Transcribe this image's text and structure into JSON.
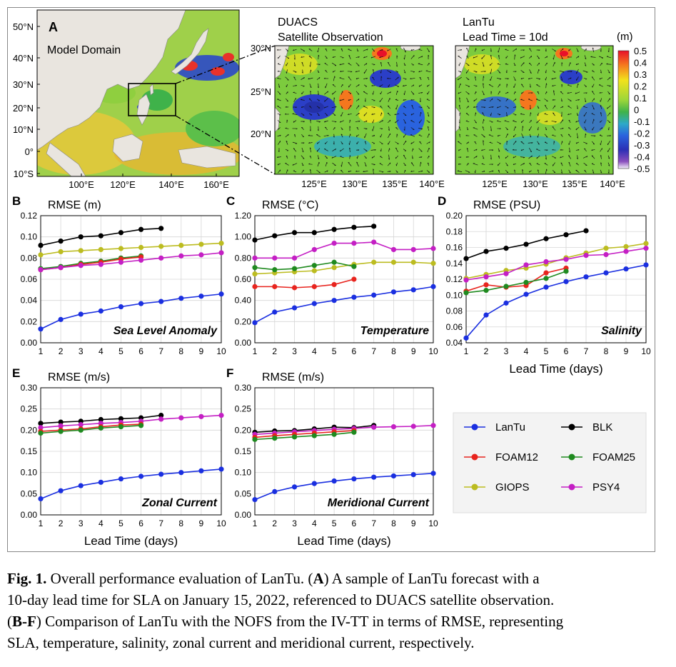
{
  "panel_a": {
    "letter": "A",
    "domain_label": "Model Domain",
    "lat_ticks": [
      "50°N",
      "40°N",
      "30°N",
      "20°N",
      "10°N",
      "0°",
      "10°S"
    ],
    "lon_ticks": [
      "100°E",
      "120°E",
      "140°E",
      "160°E"
    ],
    "duacs_title_1": "DUACS",
    "duacs_title_2": "Satellite Observation",
    "lantu_title_1": "LanTu",
    "lantu_title_2": "Lead Time = 10d",
    "zoom_lat_ticks": [
      "30°N",
      "25°N",
      "20°N"
    ],
    "zoom_lon_ticks": [
      "125°E",
      "130°E",
      "135°E",
      "140°E"
    ],
    "colorbar_unit": "(m)",
    "colorbar_ticks": [
      "0.5",
      "0.4",
      "0.3",
      "0.2",
      "0.1",
      "0",
      "-0.1",
      "-0.2",
      "-0.3",
      "-0.4",
      "-0.5"
    ],
    "colors": {
      "land": "#e9e5df",
      "sea_mid": "#3fb24a",
      "pos": "#e8322a",
      "neg": "#2b3fc7"
    }
  },
  "chart_data": [
    {
      "type": "line",
      "letter": "B",
      "ylabel": "RMSE (m)",
      "annotation": "Sea Level Anomaly",
      "xlabel": "",
      "xlim": [
        1,
        10
      ],
      "ylim": [
        0,
        0.12
      ],
      "yticks": [
        0.0,
        0.02,
        0.04,
        0.06,
        0.08,
        0.1,
        0.12
      ],
      "ytick_labels": [
        "0.00",
        "0.02",
        "0.04",
        "0.06",
        "0.08",
        "0.10",
        "0.12"
      ],
      "xticks": [
        1,
        2,
        3,
        4,
        5,
        6,
        7,
        8,
        9,
        10
      ],
      "series": [
        {
          "key": "BLK",
          "color": "#000000",
          "x": [
            1,
            2,
            3,
            4,
            5,
            6,
            7
          ],
          "y": [
            0.092,
            0.096,
            0.1,
            0.101,
            0.104,
            0.107,
            0.108
          ]
        },
        {
          "key": "GIOPS",
          "color": "#bcbc20",
          "x": [
            1,
            2,
            3,
            4,
            5,
            6,
            7,
            8,
            9,
            10
          ],
          "y": [
            0.083,
            0.086,
            0.087,
            0.088,
            0.089,
            0.09,
            0.091,
            0.092,
            0.093,
            0.094
          ]
        },
        {
          "key": "FOAM25",
          "color": "#1f8a1f",
          "x": [
            1,
            2,
            3,
            4,
            5,
            6
          ],
          "y": [
            0.07,
            0.072,
            0.075,
            0.077,
            0.08,
            0.082
          ]
        },
        {
          "key": "FOAM12",
          "color": "#e8241e",
          "x": [
            1,
            2,
            3,
            4,
            5,
            6
          ],
          "y": [
            0.069,
            0.071,
            0.074,
            0.076,
            0.079,
            0.081
          ]
        },
        {
          "key": "PSY4",
          "color": "#c41fc4",
          "x": [
            1,
            2,
            3,
            4,
            5,
            6,
            7,
            8,
            9,
            10
          ],
          "y": [
            0.069,
            0.071,
            0.073,
            0.074,
            0.076,
            0.078,
            0.08,
            0.082,
            0.083,
            0.085
          ]
        },
        {
          "key": "LanTu",
          "color": "#1a2fe0",
          "x": [
            1,
            2,
            3,
            4,
            5,
            6,
            7,
            8,
            9,
            10
          ],
          "y": [
            0.013,
            0.022,
            0.027,
            0.03,
            0.034,
            0.037,
            0.039,
            0.042,
            0.044,
            0.046
          ]
        }
      ]
    },
    {
      "type": "line",
      "letter": "C",
      "ylabel": "RMSE (°C)",
      "annotation": "Temperature",
      "xlabel": "",
      "xlim": [
        1,
        10
      ],
      "ylim": [
        0,
        1.2
      ],
      "yticks": [
        0,
        0.2,
        0.4,
        0.6,
        0.8,
        1.0,
        1.2
      ],
      "ytick_labels": [
        "0.00",
        "0.20",
        "0.40",
        "0.60",
        "0.80",
        "1.00",
        "1.20"
      ],
      "xticks": [
        1,
        2,
        3,
        4,
        5,
        6,
        7,
        8,
        9,
        10
      ],
      "series": [
        {
          "key": "BLK",
          "color": "#000000",
          "x": [
            1,
            2,
            3,
            4,
            5,
            6,
            7
          ],
          "y": [
            0.97,
            1.01,
            1.04,
            1.04,
            1.07,
            1.09,
            1.1
          ]
        },
        {
          "key": "PSY4",
          "color": "#c41fc4",
          "x": [
            1,
            2,
            3,
            4,
            5,
            6,
            7,
            8,
            9,
            10
          ],
          "y": [
            0.8,
            0.8,
            0.8,
            0.88,
            0.94,
            0.94,
            0.95,
            0.88,
            0.88,
            0.89
          ]
        },
        {
          "key": "GIOPS",
          "color": "#bcbc20",
          "x": [
            1,
            2,
            3,
            4,
            5,
            6,
            7,
            8,
            9,
            10
          ],
          "y": [
            0.65,
            0.66,
            0.67,
            0.68,
            0.71,
            0.74,
            0.76,
            0.76,
            0.76,
            0.75
          ]
        },
        {
          "key": "FOAM25",
          "color": "#1f8a1f",
          "x": [
            1,
            2,
            3,
            4,
            5,
            6
          ],
          "y": [
            0.71,
            0.69,
            0.7,
            0.73,
            0.76,
            0.72
          ]
        },
        {
          "key": "FOAM12",
          "color": "#e8241e",
          "x": [
            1,
            2,
            3,
            4,
            5,
            6
          ],
          "y": [
            0.53,
            0.53,
            0.52,
            0.53,
            0.55,
            0.6
          ]
        },
        {
          "key": "LanTu",
          "color": "#1a2fe0",
          "x": [
            1,
            2,
            3,
            4,
            5,
            6,
            7,
            8,
            9,
            10
          ],
          "y": [
            0.19,
            0.29,
            0.33,
            0.37,
            0.4,
            0.43,
            0.45,
            0.48,
            0.5,
            0.53
          ]
        }
      ]
    },
    {
      "type": "line",
      "letter": "D",
      "ylabel": "RMSE (PSU)",
      "annotation": "Salinity",
      "xlabel": "Lead Time (days)",
      "xlim": [
        1,
        10
      ],
      "ylim": [
        0.04,
        0.2
      ],
      "yticks": [
        0.04,
        0.06,
        0.08,
        0.1,
        0.12,
        0.14,
        0.16,
        0.18,
        0.2
      ],
      "ytick_labels": [
        "0.04",
        "0.06",
        "0.08",
        "0.10",
        "0.12",
        "0.14",
        "0.16",
        "0.18",
        "0.20"
      ],
      "xticks": [
        1,
        2,
        3,
        4,
        5,
        6,
        7,
        8,
        9,
        10
      ],
      "series": [
        {
          "key": "BLK",
          "color": "#000000",
          "x": [
            1,
            2,
            3,
            4,
            5,
            6,
            7
          ],
          "y": [
            0.146,
            0.155,
            0.159,
            0.164,
            0.171,
            0.176,
            0.181
          ]
        },
        {
          "key": "GIOPS",
          "color": "#bcbc20",
          "x": [
            1,
            2,
            3,
            4,
            5,
            6,
            7,
            8,
            9,
            10
          ],
          "y": [
            0.121,
            0.126,
            0.131,
            0.134,
            0.139,
            0.147,
            0.153,
            0.159,
            0.161,
            0.165
          ]
        },
        {
          "key": "PSY4",
          "color": "#c41fc4",
          "x": [
            1,
            2,
            3,
            4,
            5,
            6,
            7,
            8,
            9,
            10
          ],
          "y": [
            0.119,
            0.123,
            0.127,
            0.138,
            0.142,
            0.145,
            0.15,
            0.151,
            0.155,
            0.159
          ]
        },
        {
          "key": "FOAM12",
          "color": "#e8241e",
          "x": [
            1,
            2,
            3,
            4,
            5,
            6
          ],
          "y": [
            0.105,
            0.113,
            0.11,
            0.112,
            0.128,
            0.134
          ]
        },
        {
          "key": "FOAM25",
          "color": "#1f8a1f",
          "x": [
            1,
            2,
            3,
            4,
            5,
            6
          ],
          "y": [
            0.103,
            0.106,
            0.111,
            0.116,
            0.121,
            0.13
          ]
        },
        {
          "key": "LanTu",
          "color": "#1a2fe0",
          "x": [
            1,
            2,
            3,
            4,
            5,
            6,
            7,
            8,
            9,
            10
          ],
          "y": [
            0.046,
            0.075,
            0.09,
            0.101,
            0.11,
            0.117,
            0.123,
            0.128,
            0.133,
            0.138
          ]
        }
      ]
    },
    {
      "type": "line",
      "letter": "E",
      "ylabel": "RMSE (m/s)",
      "annotation": "Zonal Current",
      "xlabel": "Lead Time (days)",
      "xlim": [
        1,
        10
      ],
      "ylim": [
        0,
        0.3
      ],
      "yticks": [
        0,
        0.05,
        0.1,
        0.15,
        0.2,
        0.25,
        0.3
      ],
      "ytick_labels": [
        "0.00",
        "0.05",
        "0.10",
        "0.15",
        "0.20",
        "0.25",
        "0.30"
      ],
      "xticks": [
        1,
        2,
        3,
        4,
        5,
        6,
        7,
        8,
        9,
        10
      ],
      "series": [
        {
          "key": "BLK",
          "color": "#000000",
          "x": [
            1,
            2,
            3,
            4,
            5,
            6,
            7
          ],
          "y": [
            0.216,
            0.219,
            0.221,
            0.225,
            0.227,
            0.229,
            0.235
          ]
        },
        {
          "key": "PSY4",
          "color": "#c41fc4",
          "x": [
            1,
            2,
            3,
            4,
            5,
            6,
            7,
            8,
            9,
            10
          ],
          "y": [
            0.206,
            0.21,
            0.213,
            0.216,
            0.218,
            0.221,
            0.226,
            0.229,
            0.232,
            0.235
          ]
        },
        {
          "key": "FOAM12",
          "color": "#e8241e",
          "x": [
            1,
            2,
            3,
            4,
            5,
            6
          ],
          "y": [
            0.197,
            0.2,
            0.203,
            0.208,
            0.212,
            0.214
          ]
        },
        {
          "key": "FOAM25",
          "color": "#1f8a1f",
          "x": [
            1,
            2,
            3,
            4,
            5,
            6
          ],
          "y": [
            0.193,
            0.197,
            0.2,
            0.205,
            0.208,
            0.211
          ]
        },
        {
          "key": "LanTu",
          "color": "#1a2fe0",
          "x": [
            1,
            2,
            3,
            4,
            5,
            6,
            7,
            8,
            9,
            10
          ],
          "y": [
            0.038,
            0.057,
            0.069,
            0.077,
            0.085,
            0.091,
            0.096,
            0.1,
            0.104,
            0.108
          ]
        }
      ]
    },
    {
      "type": "line",
      "letter": "F",
      "ylabel": "RMSE (m/s)",
      "annotation": "Meridional Current",
      "xlabel": "Lead Time (days)",
      "xlim": [
        1,
        10
      ],
      "ylim": [
        0,
        0.3
      ],
      "yticks": [
        0,
        0.05,
        0.1,
        0.15,
        0.2,
        0.25,
        0.3
      ],
      "ytick_labels": [
        "0.00",
        "0.05",
        "0.10",
        "0.15",
        "0.20",
        "0.25",
        "0.30"
      ],
      "xticks": [
        1,
        2,
        3,
        4,
        5,
        6,
        7,
        8,
        9,
        10
      ],
      "series": [
        {
          "key": "BLK",
          "color": "#000000",
          "x": [
            1,
            2,
            3,
            4,
            5,
            6,
            7
          ],
          "y": [
            0.195,
            0.198,
            0.199,
            0.203,
            0.207,
            0.206,
            0.211
          ]
        },
        {
          "key": "PSY4",
          "color": "#c41fc4",
          "x": [
            1,
            2,
            3,
            4,
            5,
            6,
            7,
            8,
            9,
            10
          ],
          "y": [
            0.19,
            0.193,
            0.196,
            0.199,
            0.202,
            0.204,
            0.207,
            0.208,
            0.209,
            0.211
          ]
        },
        {
          "key": "FOAM12",
          "color": "#e8241e",
          "x": [
            1,
            2,
            3,
            4,
            5,
            6
          ],
          "y": [
            0.183,
            0.187,
            0.19,
            0.193,
            0.196,
            0.199
          ]
        },
        {
          "key": "FOAM25",
          "color": "#1f8a1f",
          "x": [
            1,
            2,
            3,
            4,
            5,
            6
          ],
          "y": [
            0.178,
            0.181,
            0.184,
            0.187,
            0.19,
            0.195
          ]
        },
        {
          "key": "LanTu",
          "color": "#1a2fe0",
          "x": [
            1,
            2,
            3,
            4,
            5,
            6,
            7,
            8,
            9,
            10
          ],
          "y": [
            0.036,
            0.055,
            0.066,
            0.074,
            0.08,
            0.085,
            0.089,
            0.092,
            0.095,
            0.098
          ]
        }
      ]
    }
  ],
  "legend": {
    "items": [
      {
        "key": "LanTu",
        "label": "LanTu",
        "color": "#1a2fe0"
      },
      {
        "key": "BLK",
        "label": "BLK",
        "color": "#000000"
      },
      {
        "key": "FOAM12",
        "label": "FOAM12",
        "color": "#e8241e"
      },
      {
        "key": "FOAM25",
        "label": "FOAM25",
        "color": "#1f8a1f"
      },
      {
        "key": "GIOPS",
        "label": "GIOPS",
        "color": "#bcbc20"
      },
      {
        "key": "PSY4",
        "label": "PSY4",
        "color": "#c41fc4"
      }
    ]
  },
  "caption": {
    "fig_label": "Fig. 1.",
    "line1_text": " Overall performance evaluation of LanTu. (",
    "line1_a": "A",
    "line1_rest": ") A sample of LanTu forecast with a",
    "line2": "10-day lead time for SLA on January 15, 2022, referenced to DUACS satellite observation.",
    "line3_open": "(",
    "line3_bf": "B-F",
    "line3_rest": ") Comparison of LanTu with the NOFS from the IV-TT in terms of RMSE, representing",
    "line4": "SLA, temperature, salinity, zonal current and meridional current, respectively."
  }
}
